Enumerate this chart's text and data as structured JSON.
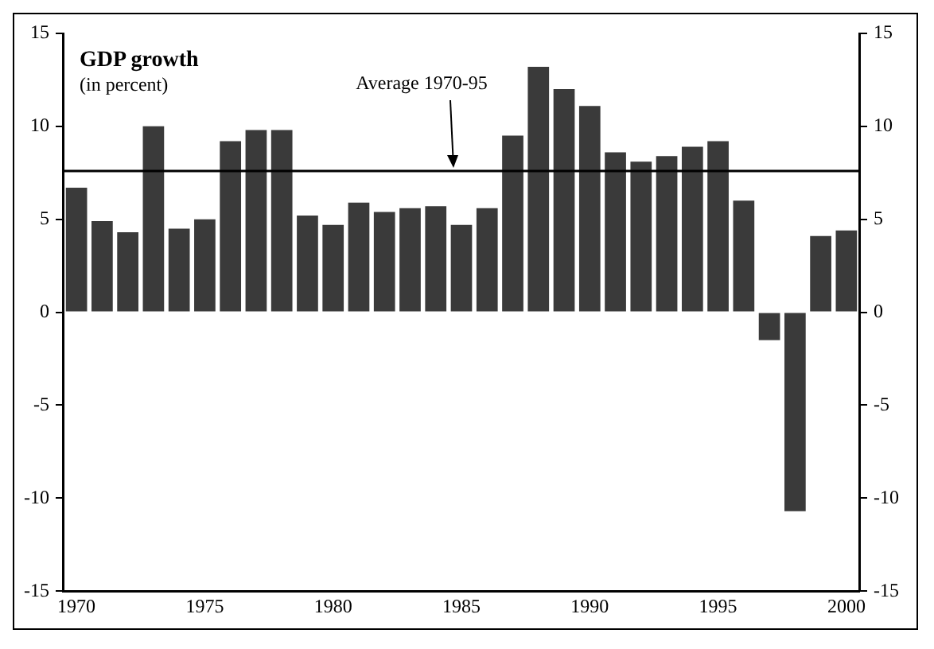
{
  "chart_data": {
    "type": "bar",
    "title": "GDP growth",
    "subtitle": "(in percent)",
    "categories": [
      "1970",
      null,
      null,
      null,
      null,
      "1975",
      null,
      null,
      null,
      null,
      "1980",
      null,
      null,
      null,
      null,
      "1985",
      null,
      null,
      null,
      null,
      "1990",
      null,
      null,
      null,
      null,
      "1995",
      null,
      null,
      null,
      null,
      "2000"
    ],
    "values": [
      6.7,
      4.9,
      4.3,
      10.0,
      4.5,
      5.0,
      9.2,
      9.8,
      9.8,
      5.2,
      4.7,
      5.9,
      5.4,
      5.6,
      5.7,
      4.7,
      5.6,
      9.5,
      13.2,
      12.0,
      11.1,
      8.6,
      8.1,
      8.4,
      8.9,
      9.2,
      6.0,
      -1.5,
      -10.7,
      4.1,
      4.4
    ],
    "color": "#3a3a3a",
    "ylim": [
      -15,
      15
    ],
    "yticks": [
      -15,
      -10,
      -5,
      0,
      5,
      10,
      15
    ],
    "y2lim": [
      -15,
      15
    ],
    "y2ticks": [
      -15,
      -10,
      -5,
      0,
      5,
      10,
      15
    ],
    "ref_lines": [
      {
        "axis": "y",
        "value": 7.6,
        "label": "Average 1970-95",
        "color": "#000000"
      }
    ],
    "grid": false,
    "legend": false
  }
}
